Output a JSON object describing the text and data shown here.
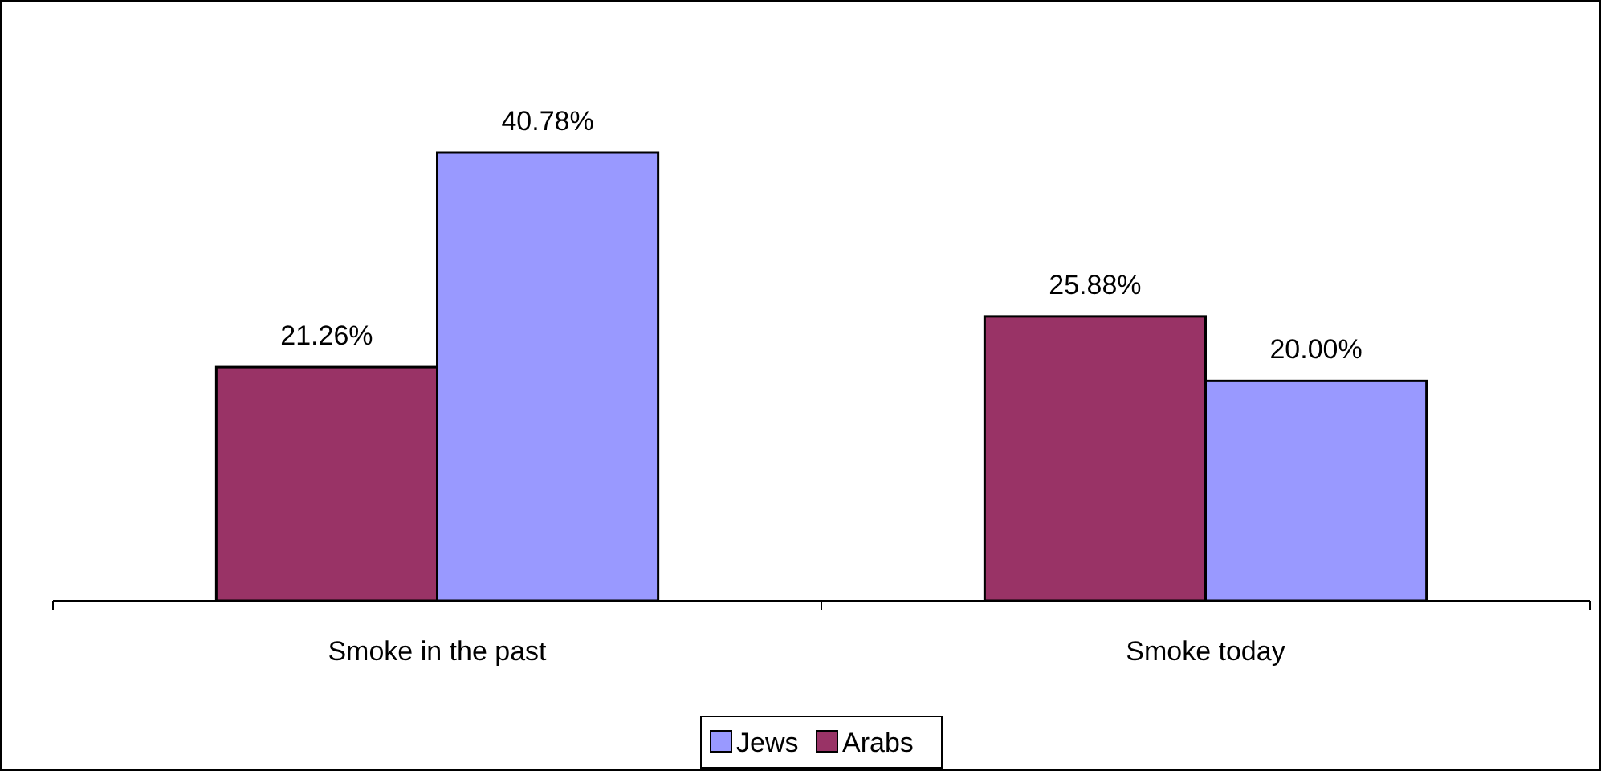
{
  "chart_data": {
    "type": "bar",
    "categories": [
      "Smoke in the past",
      "Smoke today"
    ],
    "series": [
      {
        "name": "Arabs",
        "color": "#993366",
        "values": [
          21.26,
          25.88
        ],
        "value_labels": [
          "21.26%",
          "25.88%"
        ]
      },
      {
        "name": "Jews",
        "color": "#9999ff",
        "values": [
          40.78,
          20.0
        ],
        "value_labels": [
          "40.78%",
          "20.00%"
        ]
      }
    ],
    "legend": "bottom",
    "grid": false
  }
}
